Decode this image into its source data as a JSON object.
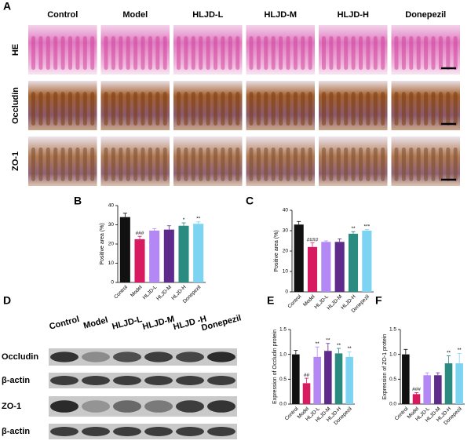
{
  "panel_labels": [
    "A",
    "B",
    "C",
    "D",
    "E",
    "F"
  ],
  "histology": {
    "columns": [
      "Control",
      "Model",
      "HLJD-L",
      "HLJD-M",
      "HLJD-H",
      "Donepezil"
    ],
    "rows": [
      "HE",
      "Occludin",
      "ZO-1"
    ]
  },
  "western_blot": {
    "columns": [
      "Control",
      "Model",
      "HLJD-L",
      "HLJD-M",
      "HLJD -H",
      "Donepezil"
    ],
    "rows": [
      "Occludin",
      "β-actin",
      "ZO-1",
      "β-actin"
    ]
  },
  "chart_data": [
    {
      "type": "bar",
      "ylabel": "Positive area (%)",
      "categories": [
        "Control",
        "Model",
        "HLJD-L",
        "HLJD-M",
        "HLJD-H",
        "Donepezil"
      ],
      "values": [
        34,
        22.5,
        27,
        27.5,
        29.5,
        30.5
      ],
      "errors": [
        2,
        1.5,
        1,
        2,
        1.5,
        1
      ],
      "annotations": [
        null,
        "###",
        null,
        null,
        "*",
        "**"
      ],
      "colors": [
        "#111111",
        "#d81b60",
        "#b388f5",
        "#5e2b8c",
        "#2a8c80",
        "#7dd3f2"
      ],
      "ylim": [
        0,
        40
      ],
      "yticks": [
        0,
        10,
        20,
        30,
        40
      ]
    },
    {
      "type": "bar",
      "ylabel": "Positive area (%)",
      "categories": [
        "Control",
        "Model",
        "HLJD-L",
        "HLJD-M",
        "HLJD-H",
        "Donepezil"
      ],
      "values": [
        33,
        22,
        24.5,
        24.5,
        28.5,
        30
      ],
      "errors": [
        1.5,
        2,
        0.5,
        1.5,
        1,
        0.5
      ],
      "annotations": [
        null,
        "####",
        null,
        null,
        "**",
        "***"
      ],
      "colors": [
        "#111111",
        "#d81b60",
        "#b388f5",
        "#5e2b8c",
        "#2a8c80",
        "#7dd3f2"
      ],
      "ylim": [
        0,
        40
      ],
      "yticks": [
        0,
        10,
        20,
        30,
        40
      ]
    },
    {
      "type": "bar",
      "ylabel": "Expression of Occludin protein",
      "categories": [
        "Control",
        "Model",
        "HLJD-L",
        "HLJD-M",
        "HLJD-H",
        "Donepezil"
      ],
      "values": [
        1.0,
        0.42,
        0.95,
        1.07,
        1.02,
        0.95
      ],
      "errors": [
        0.08,
        0.1,
        0.2,
        0.15,
        0.1,
        0.1
      ],
      "annotations": [
        null,
        "##",
        "**",
        "**",
        "**",
        "**"
      ],
      "colors": [
        "#111111",
        "#d81b60",
        "#b388f5",
        "#5e2b8c",
        "#2a8c80",
        "#7dd3f2"
      ],
      "ylim": [
        0,
        1.5
      ],
      "yticks": [
        {
          "value": 0,
          "label": "0.0"
        },
        0.5,
        {
          "value": 1,
          "label": "1.0"
        },
        1.5
      ]
    },
    {
      "type": "bar",
      "ylabel": "Expression of ZO-1 protein",
      "categories": [
        "Control",
        "Model",
        "HLJD-L",
        "HLJD-M",
        "HLJD-H",
        "Donepezil"
      ],
      "values": [
        1.0,
        0.2,
        0.58,
        0.58,
        0.82,
        0.82
      ],
      "errors": [
        0.1,
        0.03,
        0.05,
        0.05,
        0.15,
        0.2
      ],
      "annotations": [
        null,
        "###",
        null,
        null,
        "**",
        "**"
      ],
      "colors": [
        "#111111",
        "#d81b60",
        "#b388f5",
        "#5e2b8c",
        "#2a8c80",
        "#7dd3f2"
      ],
      "ylim": [
        0,
        1.5
      ],
      "yticks": [
        {
          "value": 0,
          "label": "0.0"
        },
        0.5,
        {
          "value": 1,
          "label": "1.0"
        },
        1.5
      ]
    }
  ]
}
